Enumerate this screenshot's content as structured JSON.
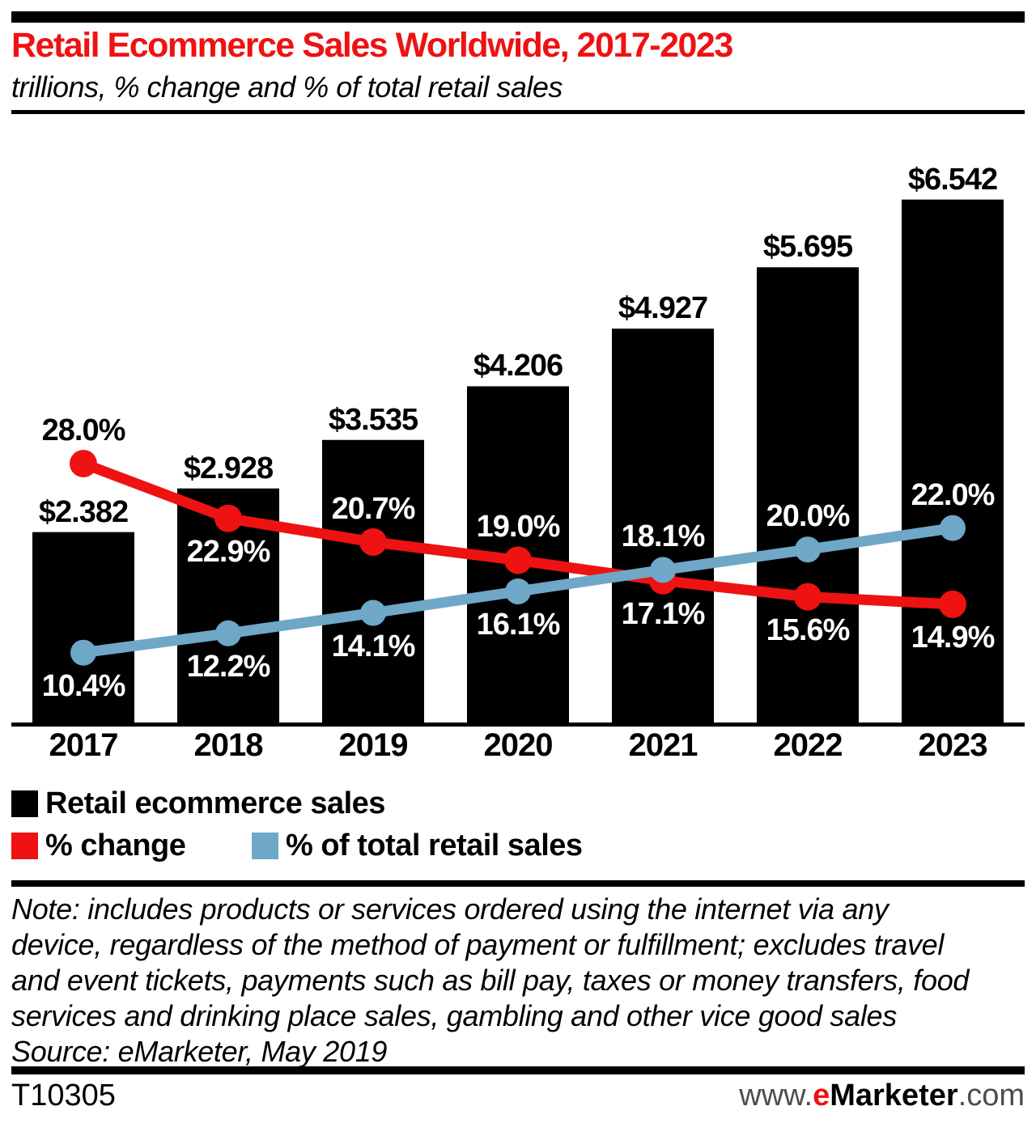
{
  "header": {
    "title": "Retail Ecommerce Sales Worldwide, 2017-2023",
    "subtitle": "trillions, % change and % of total retail sales"
  },
  "colors": {
    "red": "#ee1212",
    "blue": "#6ea7c7",
    "black": "#000000",
    "gray": "#4d4d4d"
  },
  "chart_data": {
    "type": "bar+line",
    "categories": [
      "2017",
      "2018",
      "2019",
      "2020",
      "2021",
      "2022",
      "2023"
    ],
    "bar_series": {
      "name": "Retail ecommerce sales",
      "unit": "trillions of US dollars",
      "color": "#000000",
      "values": [
        2.382,
        2.928,
        3.535,
        4.206,
        4.927,
        5.695,
        6.542
      ],
      "labels": [
        "$2.382",
        "$2.928",
        "$3.535",
        "$4.206",
        "$4.927",
        "$5.695",
        "$6.542"
      ],
      "ylim": [
        0,
        7
      ]
    },
    "line_series": [
      {
        "name": "% change",
        "color": "#ee1212",
        "values": [
          28.0,
          22.9,
          20.7,
          19.0,
          17.1,
          15.6,
          14.9
        ],
        "labels": [
          "28.0%",
          "22.9%",
          "20.7%",
          "19.0%",
          "17.1%",
          "15.6%",
          "14.9%"
        ],
        "label_placement": [
          "above",
          "below",
          "above",
          "above",
          "below",
          "below",
          "below"
        ],
        "label_colors": [
          "#000000",
          "#ffffff",
          "#ffffff",
          "#ffffff",
          "#ffffff",
          "#ffffff",
          "#ffffff"
        ]
      },
      {
        "name": "% of total retail sales",
        "color": "#6ea7c7",
        "values": [
          10.4,
          12.2,
          14.1,
          16.1,
          18.1,
          20.0,
          22.0
        ],
        "labels": [
          "10.4%",
          "12.2%",
          "14.1%",
          "16.1%",
          "18.1%",
          "20.0%",
          "22.0%"
        ],
        "label_placement": [
          "below",
          "below",
          "below",
          "below",
          "above",
          "above",
          "above"
        ],
        "label_colors": [
          "#ffffff",
          "#ffffff",
          "#ffffff",
          "#ffffff",
          "#ffffff",
          "#ffffff",
          "#ffffff"
        ]
      }
    ],
    "grid": false,
    "legend_position": "bottom-left"
  },
  "note": {
    "lines": [
      "Note: includes products or services ordered using the internet via any",
      "device, regardless of the method of payment or fulfillment; excludes travel",
      "and event tickets, payments such as bill pay, taxes or money transfers, food",
      "services and drinking place sales, gambling and other vice good sales"
    ],
    "source": "Source: eMarketer, May 2019"
  },
  "footer": {
    "code": "T10305",
    "site": {
      "www": "www.",
      "e": "e",
      "marketer": "Marketer",
      "com": ".com"
    }
  }
}
